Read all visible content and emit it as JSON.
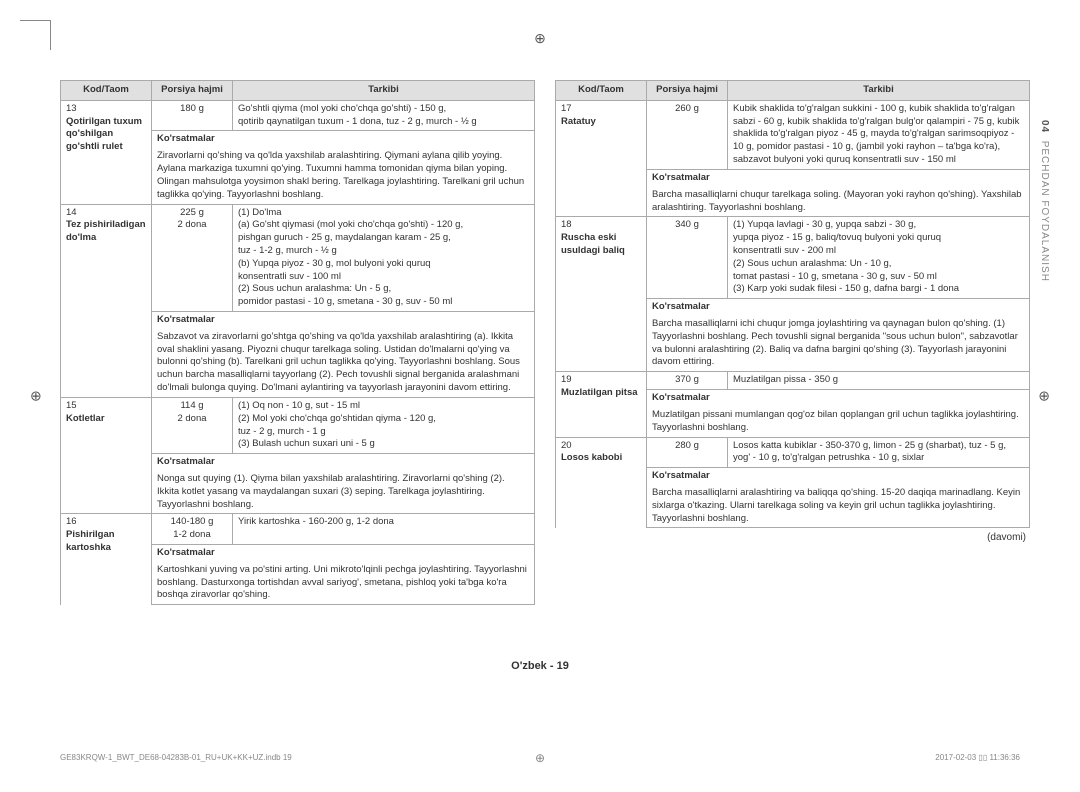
{
  "side_label_prefix": "04",
  "side_label_text": "PECHDAN FOYDALANISH",
  "headers": {
    "code": "Kod/Taom",
    "portion": "Porsiya hajmi",
    "ingredients": "Tarkibi"
  },
  "instructions_head": "Ko'rsatmalar",
  "left": [
    {
      "num": "13",
      "name": "Qotirilgan tuxum qo'shilgan go'shtli rulet",
      "portion": "180 g",
      "ingredients": "Go'shtli qiyma (mol yoki cho'chqa go'shti) - 150 g,\nqotirib qaynatilgan tuxum - 1 dona, tuz - 2 g, murch - ½ g",
      "instructions": "Ziravorlarni qo'shing va qo'lda yaxshilab aralashtiring. Qiymani aylana qilib yoying. Aylana markaziga tuxumni qo'ying. Tuxumni hamma tomonidan qiyma bilan yoping. Olingan mahsulotga yoysimon shakl bering. Tarelkaga joylashtiring. Tarelkani gril uchun taglikka qo'ying. Tayyorlashni boshlang."
    },
    {
      "num": "14",
      "name": "Tez pishiriladigan do'lma",
      "portion": "225 g\n2 dona",
      "ingredients": "(1) Do'lma\n(a) Go'sht qiymasi (mol yoki cho'chqa go'shti) - 120 g,\n    pishgan guruch - 25 g, maydalangan karam - 25 g,\n    tuz - 1-2 g, murch - ½ g\n(b) Yupqa piyoz - 30 g, mol bulyoni yoki quruq\n    konsentratli suv - 100 ml\n(2) Sous uchun aralashma: Un - 5 g,\n    pomidor pastasi - 10 g, smetana - 30 g, suv - 50 ml",
      "instructions": "Sabzavot va ziravorlarni go'shtga qo'shing va qo'lda yaxshilab aralashtiring (a). Ikkita oval shaklini yasang. Piyozni chuqur tarelkaga soling. Ustidan do'lmalarni qo'ying va bulonni qo'shing (b). Tarelkani gril uchun taglikka qo'ying. Tayyorlashni boshlang. Sous uchun barcha masalliqlarni tayyorlang (2). Pech tovushli signal berganida aralashmani do'lmali bulonga quying. Do'lmani aylantiring va tayyorlash jarayonini davom ettiring."
    },
    {
      "num": "15",
      "name": "Kotletlar",
      "portion": "114 g\n2 dona",
      "ingredients": "(1) Oq non - 10 g, sut - 15 ml\n(2) Mol yoki cho'chqa go'shtidan qiyma - 120 g,\n    tuz - 2 g, murch - 1 g\n(3) Bulash uchun suxari uni - 5 g",
      "instructions": "Nonga sut quying (1). Qiyma bilan yaxshilab aralashtiring. Ziravorlarni qo'shing (2). Ikkita kotlet yasang va maydalangan suxari (3) seping. Tarelkaga joylashtiring. Tayyorlashni boshlang."
    },
    {
      "num": "16",
      "name": "Pishirilgan kartoshka",
      "portion": "140-180 g\n1-2 dona",
      "ingredients": "Yirik kartoshka - 160-200 g, 1-2 dona",
      "instructions": "Kartoshkani yuving va po'stini arting. Uni mikroto'lqinli pechga joylashtiring. Tayyorlashni boshlang. Dasturxonga tortishdan avval sariyog', smetana, pishloq yoki ta'bga ko'ra boshqa ziravorlar qo'shing."
    }
  ],
  "right": [
    {
      "num": "17",
      "name": "Ratatuy",
      "portion": "260 g",
      "ingredients": "Kubik shaklida to'g'ralgan sukkini - 100 g, kubik shaklida to'g'ralgan sabzi - 60 g, kubik shaklida to'g'ralgan bulg'or qalampiri - 75 g, kubik shaklida to'g'ralgan piyoz - 45 g, mayda to'g'ralgan sarimsoqpiyoz - 10 g, pomidor pastasi - 10 g, (jambil yoki rayhon – ta'bga ko'ra), sabzavot bulyoni yoki quruq konsentratli suv - 150 ml",
      "instructions": "Barcha masalliqlarni chuqur tarelkaga soling. (Mayoran yoki rayhon qo'shing). Yaxshilab aralashtiring. Tayyorlashni boshlang."
    },
    {
      "num": "18",
      "name": "Ruscha eski usuldagi baliq",
      "portion": "340 g",
      "ingredients": "(1) Yupqa lavlagi - 30 g, yupqa sabzi - 30 g,\n    yupqa piyoz - 15 g, baliq/tovuq bulyoni yoki quruq\n    konsentratli suv - 200 ml\n(2) Sous uchun aralashma: Un - 10 g,\n    tomat pastasi - 10 g, smetana - 30 g, suv - 50 ml\n(3) Karp yoki sudak filesi - 150 g, dafna bargi - 1 dona",
      "instructions": "Barcha masalliqlarni ichi chuqur jomga joylashtiring va qaynagan bulon qo'shing. (1) Tayyorlashni boshlang. Pech tovushli signal berganida \"sous uchun bulon\", sabzavotlar va bulonni aralashtiring (2). Baliq va dafna bargini qo'shing (3). Tayyorlash jarayonini davom ettiring."
    },
    {
      "num": "19",
      "name": "Muzlatilgan pitsa",
      "portion": "370 g",
      "ingredients": "Muzlatilgan pissa - 350 g",
      "instructions": "Muzlatilgan pissani mumlangan qog'oz bilan qoplangan gril uchun taglikka joylashtiring. Tayyorlashni boshlang."
    },
    {
      "num": "20",
      "name": "Losos kabobi",
      "portion": "280 g",
      "ingredients": "Losos katta kubiklar - 350-370 g, limon - 25 g (sharbat), tuz - 5 g, yog' - 10 g, to'g'ralgan petrushka - 10 g, sixlar",
      "instructions": "Barcha masalliqlarni aralashtiring va baliqqa qo'shing. 15-20 daqiqa marinadlang. Keyin sixlarga o'tkazing. Ularni tarelkaga soling va keyin gril uchun taglikka joylashtiring. Tayyorlashni boshlang."
    }
  ],
  "davomi": "(davomi)",
  "page_footer": "O'zbek - 19",
  "meta_left": "GE83KRQW-1_BWT_DE68-04283B-01_RU+UK+KK+UZ.indb   19",
  "meta_right": "2017-02-03   ▯▯ 11:36:36"
}
